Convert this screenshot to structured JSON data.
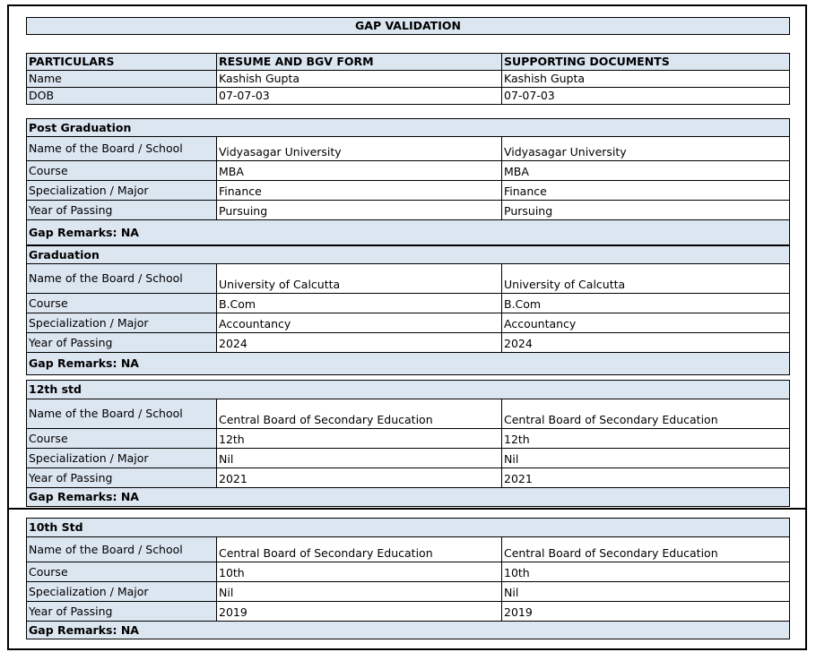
{
  "title": "GAP VALIDATION",
  "header": {
    "columns": [
      "PARTICULARS",
      "RESUME AND BGV FORM",
      "SUPPORTING DOCUMENTS"
    ],
    "rows": [
      [
        "Name",
        "Kashish Gupta",
        "Kashish Gupta"
      ],
      [
        "DOB",
        "07-07-03",
        "07-07-03"
      ]
    ]
  },
  "sections": [
    {
      "heading": "Post Graduation",
      "rows": [
        [
          "Name of the Board / School",
          "Vidyasagar University",
          "Vidyasagar University"
        ],
        [
          "Course",
          "MBA",
          "MBA"
        ],
        [
          "Specialization / Major",
          "Finance",
          "Finance"
        ],
        [
          "Year of Passing",
          "Pursuing",
          "Pursuing"
        ]
      ],
      "remarks": "Gap Remarks: NA"
    },
    {
      "heading": "Graduation",
      "rows": [
        [
          "Name of the Board / School",
          "University of Calcutta",
          "University of Calcutta"
        ],
        [
          "Course",
          "B.Com",
          "B.Com"
        ],
        [
          "Specialization / Major",
          "Accountancy",
          "Accountancy"
        ],
        [
          "Year of Passing",
          "2024",
          "2024"
        ]
      ],
      "remarks": "Gap Remarks: NA"
    },
    {
      "heading": "12th std",
      "rows": [
        [
          "Name of the Board / School",
          "Central Board of Secondary Education",
          "Central Board of Secondary Education"
        ],
        [
          "Course",
          "12th",
          "12th"
        ],
        [
          "Specialization / Major",
          "Nil",
          "Nil"
        ],
        [
          "Year of Passing",
          "2021",
          "2021"
        ]
      ],
      "remarks": "Gap Remarks: NA"
    },
    {
      "heading": "10th Std",
      "rows": [
        [
          "Name of the Board / School",
          "Central Board of Secondary Education",
          "Central Board of Secondary Education"
        ],
        [
          "Course",
          "10th",
          "10th"
        ],
        [
          "Specialization / Major",
          "Nil",
          "Nil"
        ],
        [
          "Year of Passing",
          "2019",
          "2019"
        ]
      ],
      "remarks": "Gap Remarks: NA"
    }
  ],
  "colors": {
    "header_fill": "#dce6f1",
    "border": "#000000"
  }
}
